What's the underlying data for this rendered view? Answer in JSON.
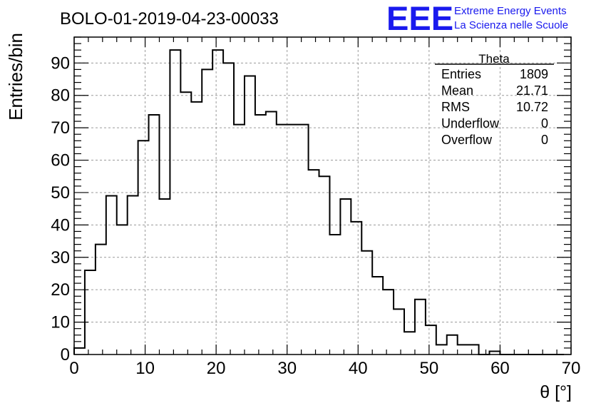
{
  "header": {
    "run_title": "BOLO-01-2019-04-23-00033",
    "logo_mark": "EEE",
    "logo_line1": "Extreme Energy Events",
    "logo_line2": "La Scienza nelle Scuole",
    "logo_color": "#1a1aee"
  },
  "stats": {
    "name": "Theta",
    "rows": [
      {
        "label": "Entries",
        "value": "1809"
      },
      {
        "label": "Mean",
        "value": "21.71"
      },
      {
        "label": "RMS",
        "value": "10.72"
      },
      {
        "label": "Underflow",
        "value": "0"
      },
      {
        "label": "Overflow",
        "value": "0"
      }
    ]
  },
  "chart_data": {
    "type": "bar",
    "style": "step-histogram",
    "xlabel": "θ [°]",
    "ylabel": "Entries/bin",
    "xlim": [
      0,
      70
    ],
    "ylim": [
      0,
      98
    ],
    "grid": true,
    "x_ticks": [
      0,
      10,
      20,
      30,
      40,
      50,
      60,
      70
    ],
    "y_ticks": [
      0,
      10,
      20,
      30,
      40,
      50,
      60,
      70,
      80,
      90
    ],
    "bin_width": 1.5,
    "bin_start": 0,
    "values": [
      2,
      26,
      34,
      49,
      40,
      49,
      66,
      74,
      48,
      94,
      81,
      78,
      88,
      94,
      90,
      71,
      86,
      74,
      75,
      71,
      71,
      71,
      57,
      55,
      37,
      48,
      41,
      32,
      24,
      20,
      14,
      7,
      17,
      9,
      3,
      6,
      3,
      3,
      0,
      1,
      0,
      0,
      0,
      0,
      0,
      0
    ]
  }
}
